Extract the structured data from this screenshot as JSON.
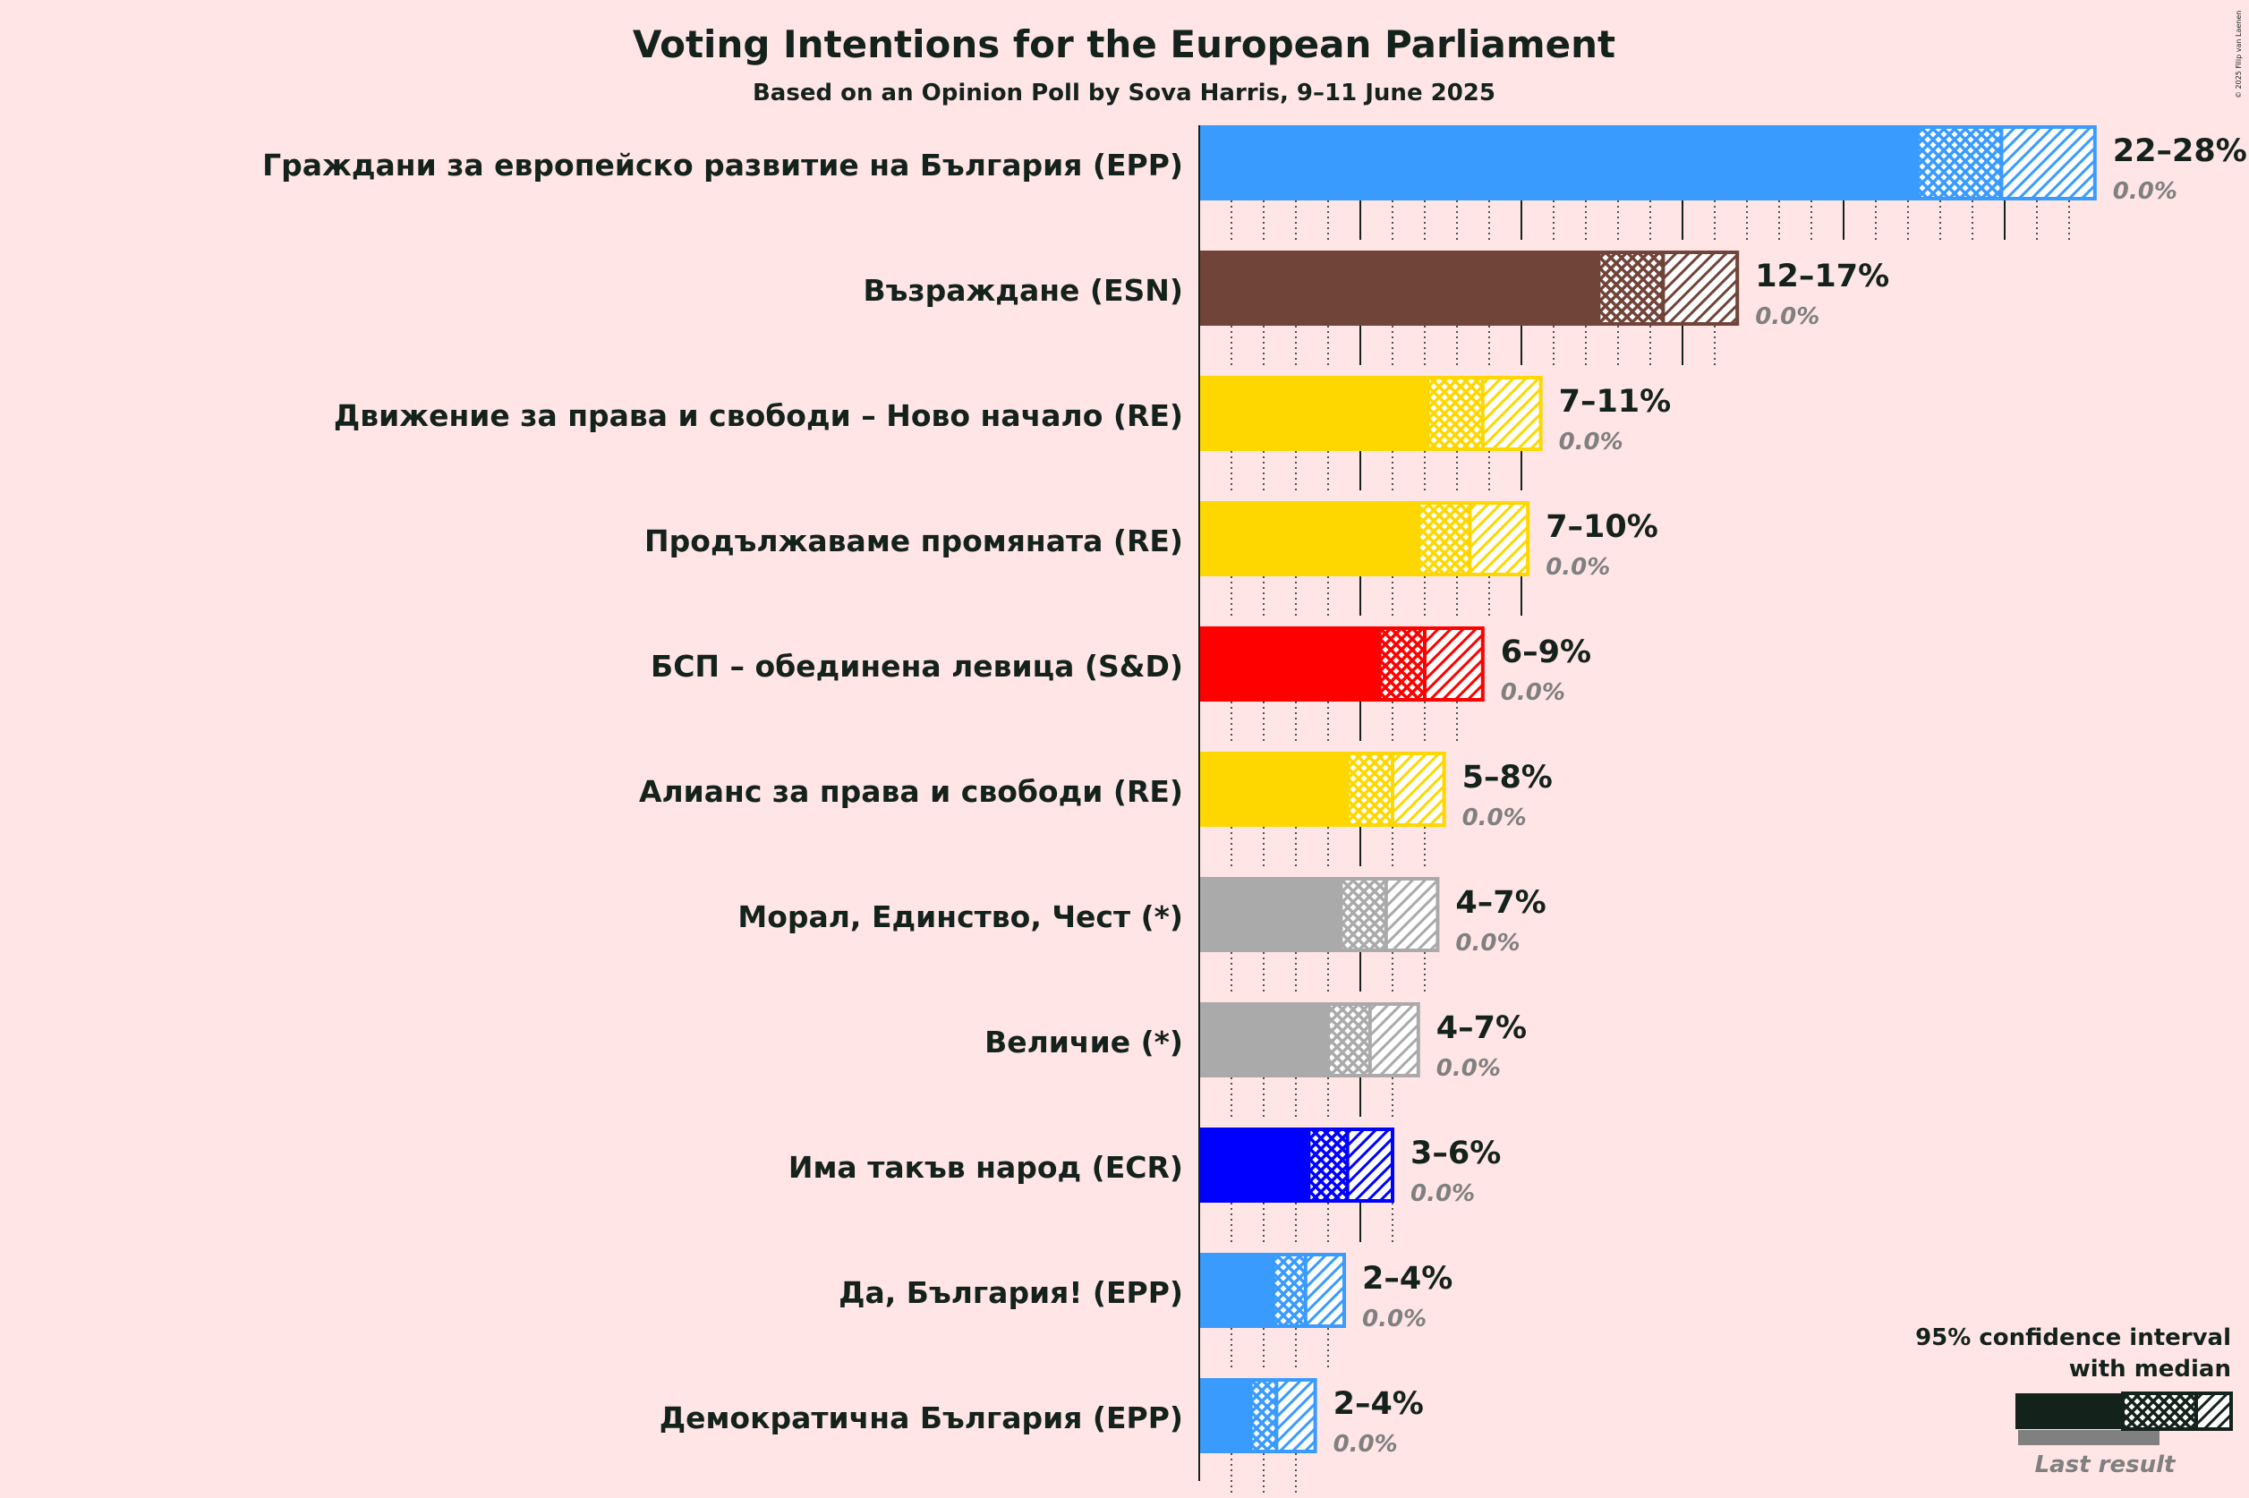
{
  "chart_data": {
    "type": "bar",
    "title": "Voting Intentions for the European Parliament",
    "subtitle": "Based on an Opinion Poll by Sova Harris, 9–11 June 2025",
    "copyright": "© 2025 Filip van Laenen",
    "xlim": [
      0,
      30
    ],
    "series": [
      {
        "name": "Граждани за европейско развитие на България (EPP)",
        "color": "#3A9BFF",
        "low": 22.3,
        "median": 24.9,
        "high": 27.8,
        "range_label": "22–28%",
        "last_label": "0.0%"
      },
      {
        "name": "Възраждане (ESN)",
        "color": "#71443A",
        "low": 12.4,
        "median": 14.4,
        "high": 16.7,
        "range_label": "12–17%",
        "last_label": "0.0%"
      },
      {
        "name": "Движение за права и свободи – Ново начало (RE)",
        "color": "#FFD700",
        "low": 7.1,
        "median": 8.8,
        "high": 10.6,
        "range_label": "7–11%",
        "last_label": "0.0%"
      },
      {
        "name": "Продължаваме промяната (RE)",
        "color": "#FFD700",
        "low": 6.8,
        "median": 8.4,
        "high": 10.2,
        "range_label": "7–10%",
        "last_label": "0.0%"
      },
      {
        "name": "БСП – обединена левица (S&D)",
        "color": "#FF0000",
        "low": 5.6,
        "median": 7.0,
        "high": 8.8,
        "range_label": "6–9%",
        "last_label": "0.0%"
      },
      {
        "name": "Алианс за права и свободи (RE)",
        "color": "#FFD700",
        "low": 4.6,
        "median": 6.0,
        "high": 7.6,
        "range_label": "5–8%",
        "last_label": "0.0%"
      },
      {
        "name": "Морал, Единство, Чест (*)",
        "color": "#AAAAAA",
        "low": 4.4,
        "median": 5.8,
        "high": 7.4,
        "range_label": "4–7%",
        "last_label": "0.0%"
      },
      {
        "name": "Величие (*)",
        "color": "#AAAAAA",
        "low": 4.0,
        "median": 5.3,
        "high": 6.8,
        "range_label": "4–7%",
        "last_label": "0.0%"
      },
      {
        "name": "Има такъв народ (ECR)",
        "color": "#0000FF",
        "low": 3.4,
        "median": 4.6,
        "high": 6.0,
        "range_label": "3–6%",
        "last_label": "0.0%"
      },
      {
        "name": "Да, България! (EPP)",
        "color": "#3A9BFF",
        "low": 2.3,
        "median": 3.3,
        "high": 4.5,
        "range_label": "2–4%",
        "last_label": "0.0%"
      },
      {
        "name": "Демократична България (EPP)",
        "color": "#3A9BFF",
        "low": 1.6,
        "median": 2.4,
        "high": 3.6,
        "range_label": "2–4%",
        "last_label": "0.0%"
      }
    ],
    "legend": {
      "line1": "95% confidence interval",
      "line2": "with median",
      "last": "Last result",
      "placement": "bottom-right"
    }
  }
}
